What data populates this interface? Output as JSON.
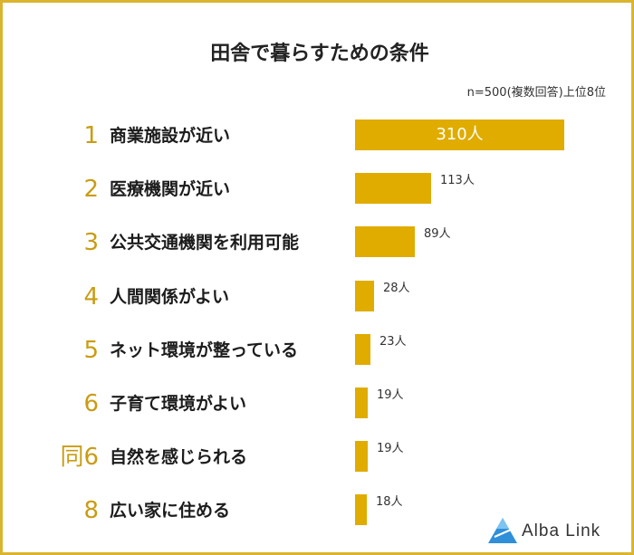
{
  "chart_data": {
    "type": "bar",
    "title": "田舎で暮らすための条件",
    "note": "n=500(複数回答)上位8位",
    "unit": "人",
    "ranks": [
      "1",
      "2",
      "3",
      "4",
      "5",
      "6",
      "同6",
      "8"
    ],
    "categories": [
      "商業施設が近い",
      "医療機関が近い",
      "公共交通機関を利用可能",
      "人間関係がよい",
      "ネット環境が整っている",
      "子育て環境がよい",
      "自然を感じられる",
      "広い家に住める"
    ],
    "values": [
      310,
      113,
      89,
      28,
      23,
      19,
      19,
      18
    ],
    "value_labels": [
      "310人",
      "113人",
      "89人",
      "28人",
      "23人",
      "19人",
      "19人",
      "18人"
    ],
    "xlim": [
      0,
      310
    ],
    "orientation": "horizontal",
    "bar_color": "#e0ac00"
  },
  "brand": {
    "name": "Alba Link",
    "icon": "triangle-logo-icon"
  }
}
